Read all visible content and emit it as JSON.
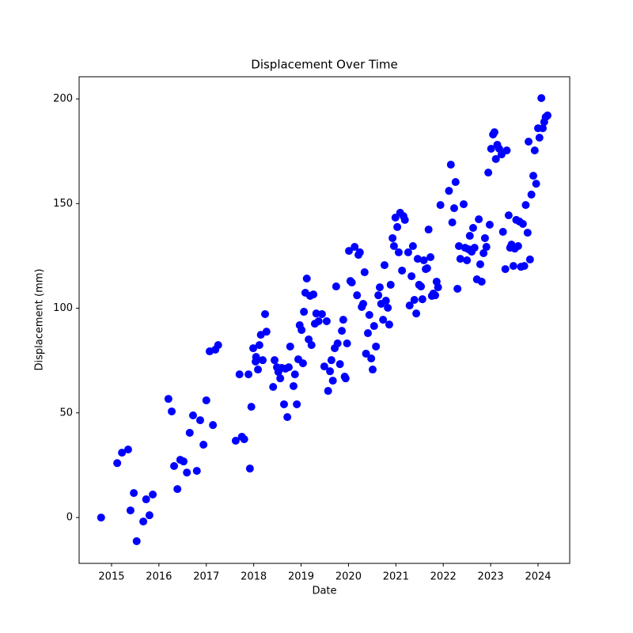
{
  "chart_data": {
    "type": "scatter",
    "title": "Displacement Over Time",
    "x_label": "Date",
    "y_label": "Displacement (mm)",
    "xlim": [
      2014.316,
      2024.668
    ],
    "ylim": [
      -21.9,
      210.6
    ],
    "xticks": [
      2015,
      2016,
      2017,
      2018,
      2019,
      2020,
      2021,
      2022,
      2023,
      2024
    ],
    "yticks": [
      0,
      50,
      100,
      150,
      200
    ],
    "color": "#0000ff",
    "x": [
      2014.78,
      2015.12,
      2015.22,
      2015.35,
      2015.4,
      2015.47,
      2015.53,
      2015.67,
      2015.73,
      2015.8,
      2015.87,
      2016.2,
      2016.27,
      2016.32,
      2016.39,
      2016.45,
      2016.52,
      2016.59,
      2016.65,
      2016.72,
      2016.8,
      2016.87,
      2016.94,
      2017.0,
      2017.07,
      2017.14,
      2017.19,
      2017.25,
      2017.62,
      2017.7,
      2017.75,
      2017.8,
      2017.89,
      2017.92,
      2017.95,
      2017.99,
      2018.04,
      2018.05,
      2018.09,
      2018.12,
      2018.15,
      2018.19,
      2018.24,
      2018.27,
      2018.41,
      2018.44,
      2018.49,
      2018.52,
      2018.56,
      2018.59,
      2018.64,
      2018.67,
      2018.71,
      2018.74,
      2018.77,
      2018.84,
      2018.87,
      2018.91,
      2018.94,
      2018.97,
      2019.01,
      2019.04,
      2019.06,
      2019.09,
      2019.12,
      2019.16,
      2019.19,
      2019.22,
      2019.26,
      2019.29,
      2019.32,
      2019.37,
      2019.44,
      2019.49,
      2019.54,
      2019.57,
      2019.61,
      2019.64,
      2019.67,
      2019.71,
      2019.74,
      2019.77,
      2019.82,
      2019.86,
      2019.89,
      2019.92,
      2019.94,
      2019.97,
      2020.01,
      2020.04,
      2020.07,
      2020.13,
      2020.18,
      2020.21,
      2020.24,
      2020.28,
      2020.31,
      2020.34,
      2020.37,
      2020.41,
      2020.44,
      2020.48,
      2020.51,
      2020.54,
      2020.58,
      2020.63,
      2020.66,
      2020.69,
      2020.73,
      2020.76,
      2020.79,
      2020.83,
      2020.86,
      2020.89,
      2020.93,
      2020.96,
      2020.99,
      2021.03,
      2021.06,
      2021.09,
      2021.13,
      2021.16,
      2021.19,
      2021.26,
      2021.29,
      2021.33,
      2021.36,
      2021.39,
      2021.43,
      2021.46,
      2021.49,
      2021.53,
      2021.56,
      2021.59,
      2021.63,
      2021.66,
      2021.69,
      2021.73,
      2021.76,
      2021.79,
      2021.83,
      2021.86,
      2021.89,
      2021.94,
      2022.12,
      2022.16,
      2022.19,
      2022.23,
      2022.26,
      2022.3,
      2022.33,
      2022.36,
      2022.43,
      2022.46,
      2022.5,
      2022.53,
      2022.56,
      2022.6,
      2022.63,
      2022.66,
      2022.71,
      2022.75,
      2022.78,
      2022.81,
      2022.85,
      2022.88,
      2022.91,
      2022.95,
      2022.98,
      2023.01,
      2023.05,
      2023.08,
      2023.11,
      2023.14,
      2023.18,
      2023.23,
      2023.26,
      2023.31,
      2023.34,
      2023.38,
      2023.41,
      2023.44,
      2023.48,
      2023.51,
      2023.54,
      2023.58,
      2023.61,
      2023.64,
      2023.68,
      2023.71,
      2023.74,
      2023.78,
      2023.8,
      2023.83,
      2023.86,
      2023.9,
      2023.93,
      2023.96,
      2024.0,
      2024.03,
      2024.07,
      2024.1,
      2024.13,
      2024.16,
      2024.2
    ],
    "values": [
      0,
      26,
      31,
      32.5,
      3.4,
      11.7,
      -11.3,
      -1.9,
      8.7,
      1.1,
      11,
      56.7,
      50.7,
      24.6,
      13.6,
      27.6,
      26.8,
      21.5,
      40.5,
      48.8,
      22.3,
      46.5,
      34.8,
      56,
      79.4,
      44.2,
      80.2,
      82.4,
      36.7,
      68.4,
      38.6,
      37.4,
      68.4,
      23.4,
      52.9,
      80.9,
      74.5,
      76.7,
      70.7,
      82.4,
      87.3,
      75.2,
      97.2,
      88.8,
      62.4,
      75.2,
      71.8,
      69.6,
      66.5,
      71.5,
      54.1,
      71.1,
      48,
      71.8,
      81.7,
      62.8,
      68.4,
      54.1,
      75.6,
      91.9,
      89.6,
      73.7,
      98.3,
      107.4,
      114.2,
      85.1,
      105.9,
      82.4,
      106.6,
      92.6,
      97.5,
      93.8,
      97.2,
      72.2,
      93.8,
      60.5,
      69.9,
      75.2,
      65.4,
      80.9,
      110.4,
      83.2,
      73.3,
      89.2,
      94.5,
      67.3,
      66.5,
      83.2,
      127.4,
      113,
      112.3,
      129.3,
      106.2,
      125.5,
      126.7,
      100.6,
      102.1,
      117.2,
      78.3,
      88.1,
      96.8,
      76,
      70.7,
      91.5,
      81.7,
      106.2,
      110,
      102.1,
      94.5,
      120.6,
      103.6,
      100.2,
      92.2,
      111.2,
      133.5,
      129.7,
      143.3,
      138.8,
      126.7,
      145.6,
      118,
      144,
      142.2,
      126.7,
      101.3,
      115.3,
      129.7,
      104,
      97.5,
      123.6,
      111.2,
      110.4,
      104.3,
      122.9,
      118.7,
      119.1,
      137.6,
      124.4,
      105.9,
      107,
      106.2,
      112.7,
      110,
      149.3,
      156.1,
      168.6,
      141,
      147.8,
      160.3,
      109.3,
      129.7,
      123.6,
      149.7,
      128.9,
      122.9,
      128.2,
      134.6,
      127,
      138.4,
      128.9,
      113.8,
      142.5,
      121,
      112.7,
      126.3,
      133.5,
      129.3,
      164.8,
      139.9,
      176.2,
      183,
      184.1,
      171.3,
      178.1,
      176.2,
      173.5,
      136.5,
      118.7,
      175.4,
      144.4,
      128.9,
      130.4,
      120.2,
      128.5,
      142.2,
      129.7,
      141.4,
      119.8,
      140.3,
      120.2,
      149.3,
      136.1,
      179.6,
      123.3,
      154.3,
      163.3,
      175.4,
      159.5,
      186,
      181.5,
      200.4,
      186,
      189,
      191.3,
      192.1
    ]
  }
}
